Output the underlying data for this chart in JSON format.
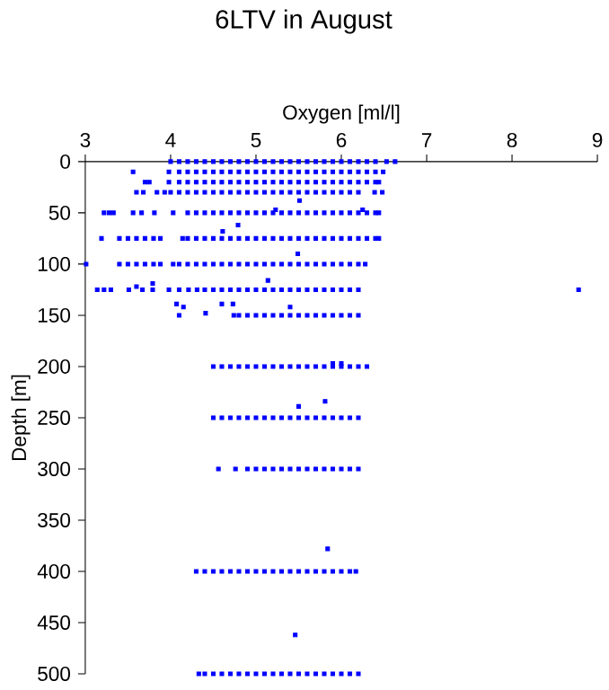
{
  "chart_data": {
    "type": "scatter",
    "title": "6LTV in August",
    "xlabel": "Oxygen [ml/l]",
    "ylabel": "Depth [m]",
    "xlim": [
      3,
      9
    ],
    "xticks": [
      3,
      4,
      5,
      6,
      7,
      8,
      9
    ],
    "ylim": [
      500,
      0
    ],
    "yticks": [
      0,
      50,
      100,
      150,
      200,
      250,
      300,
      350,
      400,
      450,
      500
    ],
    "marker": "square",
    "series": [
      {
        "color": "#0000ff",
        "x": [
          4.0,
          4.1,
          4.2,
          4.3,
          4.4,
          4.5,
          4.6,
          4.7,
          4.8,
          4.9,
          5.0,
          5.1,
          5.2,
          5.3,
          5.4,
          5.5,
          5.6,
          5.7,
          5.8,
          5.9,
          6.0,
          6.1,
          6.2,
          6.3,
          6.4,
          6.53,
          6.63
        ],
        "values": [
          0,
          0,
          0,
          0,
          0,
          0,
          0,
          0,
          0,
          0,
          0,
          0,
          0,
          0,
          0,
          0,
          0,
          0,
          0,
          0,
          0,
          0,
          0,
          0,
          0,
          0,
          0
        ]
      },
      {
        "color": "#0000ff",
        "x": [
          3.56,
          3.98,
          4.1,
          4.2,
          4.3,
          4.4,
          4.5,
          4.6,
          4.7,
          4.8,
          4.9,
          5.0,
          5.1,
          5.2,
          5.3,
          5.4,
          5.5,
          5.6,
          5.7,
          5.8,
          5.9,
          6.0,
          6.1,
          6.2,
          6.3,
          6.4,
          6.49
        ],
        "values": [
          10,
          10,
          10,
          10,
          10,
          10,
          10,
          10,
          10,
          10,
          10,
          10,
          10,
          10,
          10,
          10,
          10,
          10,
          10,
          10,
          10,
          10,
          10,
          10,
          10,
          10,
          10
        ]
      },
      {
        "color": "#0000ff",
        "x": [
          3.7,
          3.75,
          3.98,
          4.1,
          4.2,
          4.3,
          4.4,
          4.5,
          4.6,
          4.7,
          4.8,
          4.9,
          5.0,
          5.1,
          5.2,
          5.3,
          5.4,
          5.5,
          5.6,
          5.7,
          5.8,
          5.9,
          6.0,
          6.1,
          6.2,
          6.3,
          6.4,
          6.44
        ],
        "values": [
          20,
          20,
          20,
          20,
          20,
          20,
          20,
          20,
          20,
          20,
          20,
          20,
          20,
          20,
          20,
          20,
          20,
          20,
          20,
          20,
          20,
          20,
          20,
          20,
          20,
          20,
          20,
          20
        ]
      },
      {
        "color": "#0000ff",
        "x": [
          3.6,
          3.68,
          3.84,
          3.93,
          4.0,
          4.1,
          4.2,
          4.3,
          4.4,
          4.5,
          4.6,
          4.7,
          4.8,
          4.9,
          5.0,
          5.1,
          5.2,
          5.3,
          5.4,
          5.5,
          5.6,
          5.7,
          5.8,
          5.9,
          6.0,
          6.1,
          6.2,
          6.39,
          6.48
        ],
        "values": [
          30,
          30,
          30,
          30,
          30,
          30,
          30,
          30,
          30,
          30,
          30,
          30,
          30,
          30,
          30,
          30,
          30,
          30,
          30,
          30,
          30,
          30,
          30,
          30,
          30,
          30,
          30,
          30,
          30
        ]
      },
      {
        "color": "#0000ff",
        "x": [
          3.22,
          3.28,
          3.33,
          3.56,
          3.66,
          3.81,
          4.03,
          4.2,
          4.3,
          4.4,
          4.5,
          4.6,
          4.7,
          4.8,
          4.9,
          5.0,
          5.1,
          5.2,
          5.3,
          5.4,
          5.5,
          5.6,
          5.7,
          5.8,
          5.9,
          6.0,
          6.1,
          6.2,
          6.3,
          6.4,
          6.44
        ],
        "values": [
          50,
          50,
          50,
          50,
          50,
          50,
          50,
          50,
          50,
          50,
          50,
          50,
          50,
          50,
          50,
          50,
          50,
          50,
          50,
          50,
          50,
          50,
          50,
          50,
          50,
          50,
          50,
          50,
          50,
          50,
          50
        ]
      },
      {
        "color": "#0000ff",
        "x": [
          3.19,
          3.4,
          3.5,
          3.6,
          3.7,
          3.8,
          3.88,
          4.14,
          4.2,
          4.3,
          4.4,
          4.5,
          4.6,
          4.7,
          4.8,
          4.9,
          5.0,
          5.1,
          5.2,
          5.3,
          5.4,
          5.5,
          5.6,
          5.7,
          5.8,
          5.9,
          6.0,
          6.1,
          6.2,
          6.3,
          6.4,
          6.44
        ],
        "values": [
          75,
          75,
          75,
          75,
          75,
          75,
          75,
          75,
          75,
          75,
          75,
          75,
          75,
          75,
          75,
          75,
          75,
          75,
          75,
          75,
          75,
          75,
          75,
          75,
          75,
          75,
          75,
          75,
          75,
          75,
          75,
          75
        ]
      },
      {
        "color": "#0000ff",
        "x": [
          3.01,
          3.4,
          3.5,
          3.6,
          3.7,
          3.8,
          3.88,
          4.03,
          4.1,
          4.2,
          4.3,
          4.4,
          4.5,
          4.6,
          4.7,
          4.8,
          4.9,
          5.0,
          5.1,
          5.2,
          5.3,
          5.4,
          5.5,
          5.6,
          5.7,
          5.8,
          5.9,
          6.0,
          6.1,
          6.2,
          6.28
        ],
        "values": [
          100,
          100,
          100,
          100,
          100,
          100,
          100,
          100,
          100,
          100,
          100,
          100,
          100,
          100,
          100,
          100,
          100,
          100,
          100,
          100,
          100,
          100,
          100,
          100,
          100,
          100,
          100,
          100,
          100,
          100,
          100
        ]
      },
      {
        "color": "#0000ff",
        "x": [
          3.14,
          3.22,
          3.3,
          3.51,
          3.67,
          3.79,
          3.98,
          4.1,
          4.21,
          4.31,
          4.4,
          4.5,
          4.6,
          4.7,
          4.8,
          4.9,
          5.0,
          5.1,
          5.2,
          5.3,
          5.4,
          5.5,
          5.6,
          5.7,
          5.8,
          5.9,
          6.0,
          6.1,
          6.2,
          8.78
        ],
        "values": [
          125,
          125,
          125,
          125,
          125,
          125,
          125,
          125,
          125,
          125,
          125,
          125,
          125,
          125,
          125,
          125,
          125,
          125,
          125,
          125,
          125,
          125,
          125,
          125,
          125,
          125,
          125,
          125,
          125,
          125
        ]
      },
      {
        "color": "#0000ff",
        "x": [
          4.1,
          4.74,
          4.8,
          4.9,
          5.0,
          5.1,
          5.2,
          5.3,
          5.4,
          5.5,
          5.6,
          5.7,
          5.8,
          5.9,
          6.0,
          6.1,
          6.2
        ],
        "values": [
          150,
          150,
          150,
          150,
          150,
          150,
          150,
          150,
          150,
          150,
          150,
          150,
          150,
          150,
          150,
          150,
          150
        ]
      },
      {
        "color": "#0000ff",
        "x": [
          4.5,
          4.6,
          4.7,
          4.8,
          4.9,
          5.0,
          5.1,
          5.2,
          5.3,
          5.4,
          5.5,
          5.6,
          5.7,
          5.8,
          5.9,
          6.0,
          6.1,
          6.2,
          6.3
        ],
        "values": [
          200,
          200,
          200,
          200,
          200,
          200,
          200,
          200,
          200,
          200,
          200,
          200,
          200,
          200,
          200,
          200,
          200,
          200,
          200
        ]
      },
      {
        "color": "#0000ff",
        "x": [
          4.5,
          4.6,
          4.7,
          4.8,
          4.9,
          5.0,
          5.1,
          5.2,
          5.3,
          5.4,
          5.5,
          5.6,
          5.7,
          5.8,
          5.9,
          6.0,
          6.1,
          6.2
        ],
        "values": [
          250,
          250,
          250,
          250,
          250,
          250,
          250,
          250,
          250,
          250,
          250,
          250,
          250,
          250,
          250,
          250,
          250,
          250
        ]
      },
      {
        "color": "#0000ff",
        "x": [
          4.56,
          4.76,
          4.9,
          5.0,
          5.1,
          5.2,
          5.3,
          5.4,
          5.5,
          5.6,
          5.7,
          5.8,
          5.9,
          6.0,
          6.1,
          6.2
        ],
        "values": [
          300,
          300,
          300,
          300,
          300,
          300,
          300,
          300,
          300,
          300,
          300,
          300,
          300,
          300,
          300,
          300
        ]
      },
      {
        "color": "#0000ff",
        "x": [
          4.3,
          4.4,
          4.5,
          4.6,
          4.7,
          4.8,
          4.9,
          5.0,
          5.1,
          5.2,
          5.3,
          5.4,
          5.5,
          5.6,
          5.7,
          5.8,
          5.9,
          6.0,
          6.1,
          6.17
        ],
        "values": [
          400,
          400,
          400,
          400,
          400,
          400,
          400,
          400,
          400,
          400,
          400,
          400,
          400,
          400,
          400,
          400,
          400,
          400,
          400,
          400
        ]
      },
      {
        "color": "#0000ff",
        "x": [
          4.33,
          4.4,
          4.5,
          4.6,
          4.7,
          4.8,
          4.9,
          5.0,
          5.1,
          5.2,
          5.3,
          5.4,
          5.5,
          5.6,
          5.7,
          5.8,
          5.9,
          6.0,
          6.1,
          6.2
        ],
        "values": [
          500,
          500,
          500,
          500,
          500,
          500,
          500,
          500,
          500,
          500,
          500,
          500,
          500,
          500,
          500,
          500,
          500,
          500,
          500,
          500
        ]
      },
      {
        "color": "#0000ff",
        "x": [
          5.51,
          5.23,
          6.25,
          4.79,
          4.61,
          5.49,
          3.6,
          3.79,
          5.14,
          4.07,
          4.15,
          4.41,
          4.6,
          4.73,
          5.4,
          5.9,
          6.0,
          5.81,
          5.5,
          5.84,
          5.46
        ],
        "values": [
          38,
          47,
          47,
          62,
          68,
          90,
          122,
          119,
          116,
          139,
          142,
          148,
          139,
          139,
          142,
          197,
          197,
          234,
          239,
          378,
          462
        ]
      }
    ]
  }
}
